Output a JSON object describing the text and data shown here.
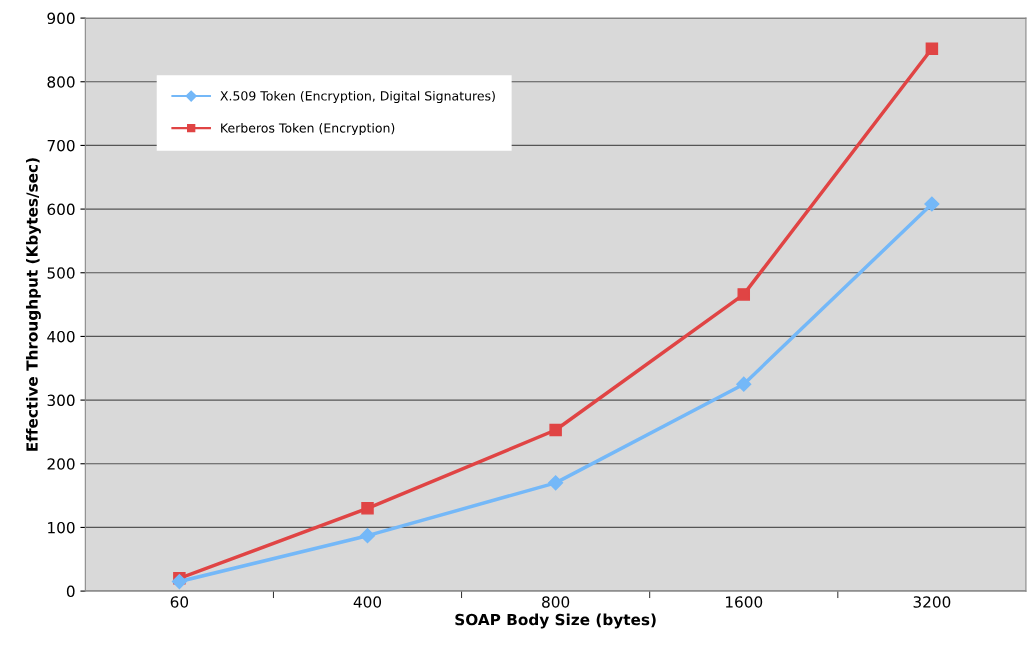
{
  "chart_data": {
    "type": "line",
    "xlabel": "SOAP Body Size (bytes)",
    "ylabel": "Effective Throughput (Kbytes/sec)",
    "categories": [
      "60",
      "400",
      "800",
      "1600",
      "3200"
    ],
    "series": [
      {
        "name": "X.509 Token (Encryption, Digital Signatures)",
        "color": "#74b8f8",
        "marker": "diamond",
        "values": [
          15,
          87,
          170,
          325,
          608
        ]
      },
      {
        "name": "Kerberos Token (Encryption)",
        "color": "#e04444",
        "marker": "square",
        "values": [
          20,
          130,
          253,
          466,
          852
        ]
      }
    ],
    "ylim": [
      0,
      900
    ],
    "yticks": [
      0,
      100,
      200,
      300,
      400,
      500,
      600,
      700,
      800,
      900
    ],
    "grid": "y",
    "legend": "top left",
    "line_style": "solid"
  }
}
